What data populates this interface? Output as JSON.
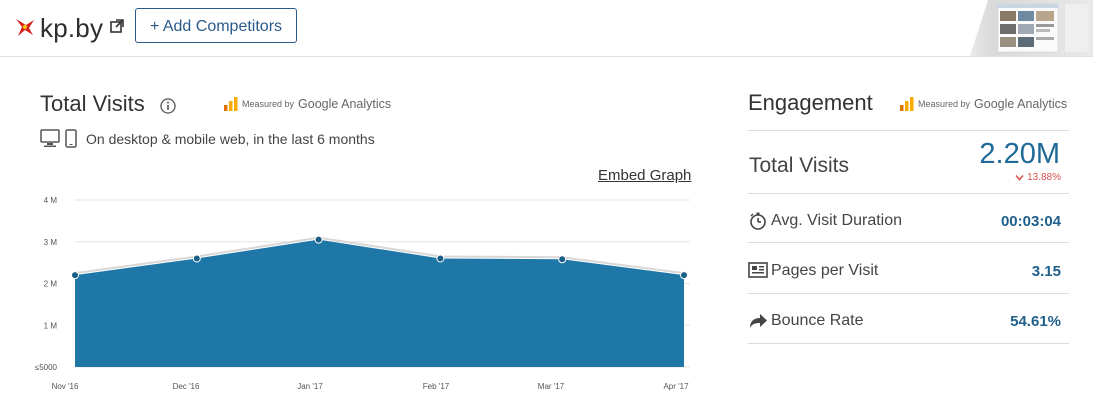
{
  "header": {
    "domain": "kp.by",
    "add_competitors_label": "+ Add Competitors"
  },
  "total_visits_panel": {
    "title": "Total Visits",
    "measured_by": "Measured by",
    "ga_name": "Google Analytics",
    "subtitle": "On desktop & mobile web, in the last 6 months",
    "embed_label": "Embed Graph"
  },
  "chart_data": {
    "type": "area",
    "x": [
      "Nov '16",
      "Dec '16",
      "Jan '17",
      "Feb '17",
      "Mar '17",
      "Apr '17"
    ],
    "series": [
      {
        "values": [
          2200000,
          2600000,
          3050000,
          2600000,
          2580000,
          2200000
        ]
      }
    ],
    "y_ticks": [
      "4 M",
      "3 M",
      "2 M",
      "1 M",
      "≤5000"
    ],
    "ylim": [
      0,
      4000000
    ],
    "grid": true,
    "color": "#1f77a8"
  },
  "engagement": {
    "title": "Engagement",
    "measured_by": "Measured by",
    "ga_name": "Google Analytics",
    "total_visits_label": "Total Visits",
    "total_visits_value": "2.20M",
    "change": "13.88%",
    "metrics": [
      {
        "label": "Avg. Visit Duration",
        "value": "00:03:04",
        "icon": "stopwatch-icon"
      },
      {
        "label": "Pages per Visit",
        "value": "3.15",
        "icon": "pages-icon"
      },
      {
        "label": "Bounce Rate",
        "value": "54.61%",
        "icon": "bounce-arrow-icon"
      }
    ]
  },
  "colors": {
    "accent": "#1f6a98",
    "area": "#1f77a8",
    "negative": "#d9534f",
    "ga_orange": "#f9ab00"
  }
}
